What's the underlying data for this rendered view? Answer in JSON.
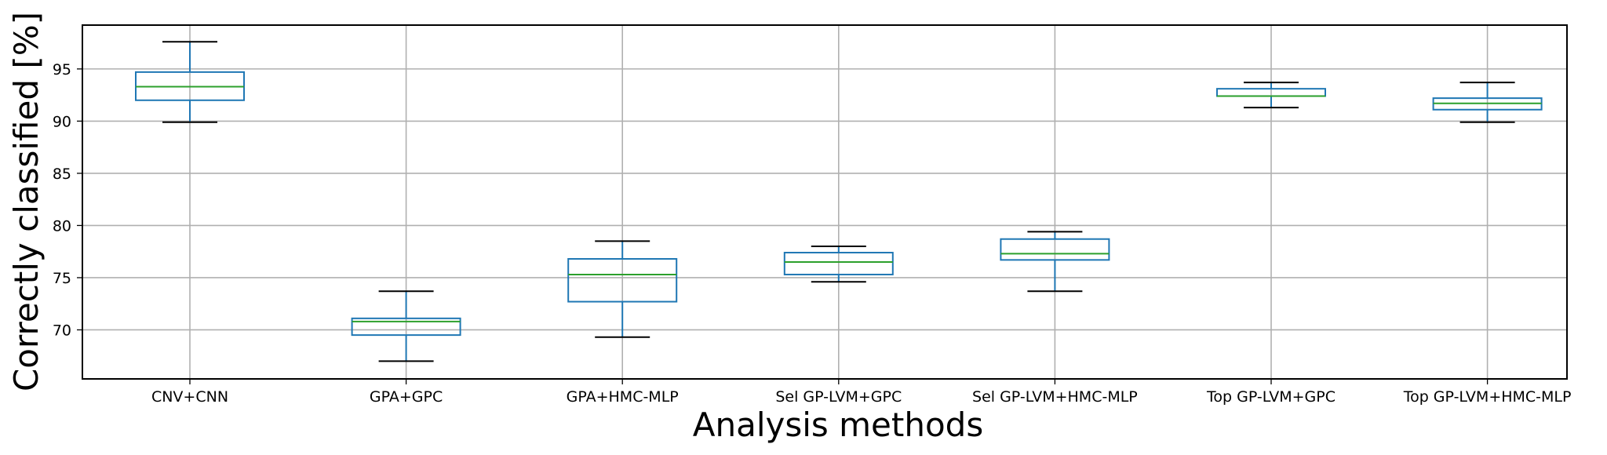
{
  "chart_data": {
    "type": "box",
    "xlabel": "Analysis methods",
    "ylabel": "Correctly classified [%]",
    "ylim": [
      65.3,
      99.2
    ],
    "yticks": [
      70,
      75,
      80,
      85,
      90,
      95
    ],
    "grid": true,
    "categories": [
      "CNV+CNN",
      "GPA+GPC",
      "GPA+HMC-MLP",
      "Sel GP-LVM+GPC",
      "Sel GP-LVM+HMC-MLP",
      "Top GP-LVM+GPC",
      "Top GP-LVM+HMC-MLP"
    ],
    "boxes": [
      {
        "whislo": 89.9,
        "q1": 92.0,
        "med": 93.3,
        "q3": 94.7,
        "whishi": 97.6
      },
      {
        "whislo": 67.0,
        "q1": 69.5,
        "med": 70.8,
        "q3": 71.1,
        "whishi": 73.7
      },
      {
        "whislo": 69.3,
        "q1": 72.7,
        "med": 75.3,
        "q3": 76.8,
        "whishi": 78.5
      },
      {
        "whislo": 74.6,
        "q1": 75.3,
        "med": 76.5,
        "q3": 77.4,
        "whishi": 78.0
      },
      {
        "whislo": 73.7,
        "q1": 76.7,
        "med": 77.3,
        "q3": 78.7,
        "whishi": 79.4
      },
      {
        "whislo": 91.3,
        "q1": 92.4,
        "med": 92.4,
        "q3": 93.1,
        "whishi": 93.7
      },
      {
        "whislo": 89.9,
        "q1": 91.1,
        "med": 91.7,
        "q3": 92.2,
        "whishi": 93.7
      }
    ],
    "colors": {
      "box": "#1f77b4",
      "median": "#2ca02c",
      "cap": "#000000",
      "grid": "#b0b0b0"
    }
  }
}
